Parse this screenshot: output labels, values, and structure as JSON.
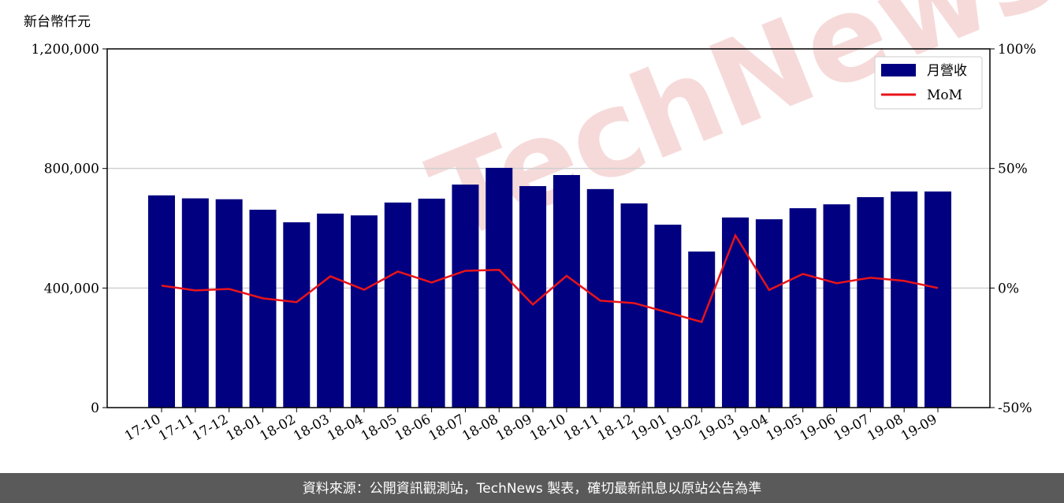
{
  "chart_data": {
    "type": "bar_line",
    "y_unit_label": "新台幣仟元",
    "watermark": "TechNews",
    "source": "資料來源：公開資訊觀測站，TechNews 製表，確切最新訊息以原站公告為準",
    "categories": [
      "17-10",
      "17-11",
      "17-12",
      "18-01",
      "18-02",
      "18-03",
      "18-04",
      "18-05",
      "18-06",
      "18-07",
      "18-08",
      "18-09",
      "18-10",
      "18-11",
      "18-12",
      "19-01",
      "19-02",
      "19-03",
      "19-04",
      "19-05",
      "19-06",
      "19-07",
      "19-08",
      "19-09"
    ],
    "series": [
      {
        "name": "月營收",
        "color": "#000080",
        "type": "bar",
        "values": [
          710000,
          700000,
          697000,
          662000,
          620000,
          649000,
          643000,
          686000,
          699000,
          746000,
          802000,
          741000,
          778000,
          731000,
          683000,
          612000,
          522000,
          636000,
          630000,
          667000,
          680000,
          704000,
          723000,
          723000
        ]
      },
      {
        "name": "MoM",
        "color": "#e8141a",
        "type": "line",
        "axis": "y2",
        "values": [
          1.0,
          -1.0,
          -0.4,
          -4.3,
          -5.9,
          4.9,
          -0.7,
          6.9,
          2.3,
          7.2,
          7.6,
          -6.9,
          5.1,
          -5.3,
          -6.3,
          -10.2,
          -14.2,
          22.0,
          -0.8,
          5.9,
          2.0,
          4.3,
          3.0,
          0
        ]
      }
    ],
    "ylim": [
      0,
      1200000
    ],
    "yticks": [
      0,
      {
        "value": 400000,
        "label": "400,000"
      },
      {
        "value": 800000,
        "label": "800,000"
      },
      {
        "value": 1200000,
        "label": "1,200,000"
      }
    ],
    "y2lim": [
      -50,
      100
    ],
    "y2ticks": [
      {
        "value": -50,
        "label": "-50%"
      },
      {
        "value": 0,
        "label": "0%"
      },
      {
        "value": 50,
        "label": "50%"
      },
      {
        "value": 100,
        "label": "100%"
      }
    ],
    "grid": true,
    "legend": "upper right"
  }
}
